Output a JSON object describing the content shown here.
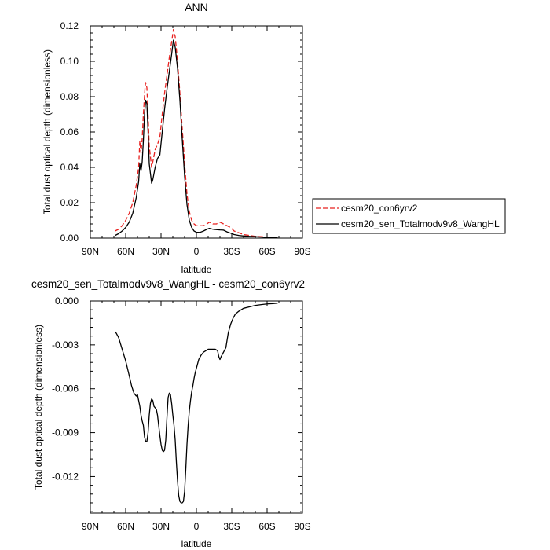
{
  "chart_data": [
    {
      "type": "line",
      "title": "ANN",
      "xlabel": "latitude",
      "ylabel": "Total dust optical depth (dimensionless)",
      "xlim": [
        90,
        -90
      ],
      "ylim": [
        0,
        0.12
      ],
      "xticks": [
        90,
        60,
        30,
        0,
        -30,
        -60,
        -90
      ],
      "xtick_labels": [
        "90N",
        "60N",
        "30N",
        "0",
        "30S",
        "60S",
        "90S"
      ],
      "yticks": [
        0,
        0.02,
        0.04,
        0.06,
        0.08,
        0.1,
        0.12
      ],
      "ytick_labels": [
        "0.00",
        "0.02",
        "0.04",
        "0.06",
        "0.08",
        "0.10",
        "0.12"
      ],
      "grid": false,
      "legend": "outside-right",
      "series": [
        {
          "name": "cesm20_con6yrv2",
          "color": "#e8211f",
          "dash": "dashed",
          "points": [
            [
              69,
              0.004
            ],
            [
              66,
              0.005
            ],
            [
              63,
              0.007
            ],
            [
              60,
              0.01
            ],
            [
              57,
              0.014
            ],
            [
              54,
              0.02
            ],
            [
              51,
              0.03
            ],
            [
              49,
              0.04
            ],
            [
              48,
              0.055
            ],
            [
              47,
              0.048
            ],
            [
              46,
              0.056
            ],
            [
              45,
              0.07
            ],
            [
              43.5,
              0.086
            ],
            [
              43,
              0.088
            ],
            [
              42,
              0.085
            ],
            [
              41,
              0.07
            ],
            [
              40,
              0.052
            ],
            [
              38,
              0.04
            ],
            [
              37,
              0.043
            ],
            [
              35,
              0.05
            ],
            [
              33,
              0.053
            ],
            [
              31,
              0.057
            ],
            [
              29,
              0.07
            ],
            [
              27,
              0.082
            ],
            [
              25,
              0.092
            ],
            [
              23,
              0.102
            ],
            [
              21,
              0.111
            ],
            [
              19.5,
              0.118
            ],
            [
              18,
              0.114
            ],
            [
              16,
              0.1
            ],
            [
              14,
              0.082
            ],
            [
              12,
              0.062
            ],
            [
              10,
              0.042
            ],
            [
              8,
              0.025
            ],
            [
              6,
              0.015
            ],
            [
              4,
              0.01
            ],
            [
              2,
              0.008
            ],
            [
              0,
              0.007
            ],
            [
              -3,
              0.007
            ],
            [
              -6,
              0.007
            ],
            [
              -9,
              0.008
            ],
            [
              -11,
              0.009
            ],
            [
              -14,
              0.008
            ],
            [
              -17,
              0.008
            ],
            [
              -20,
              0.009
            ],
            [
              -23,
              0.008
            ],
            [
              -26,
              0.007
            ],
            [
              -29,
              0.006
            ],
            [
              -32,
              0.004
            ],
            [
              -36,
              0.003
            ],
            [
              -40,
              0.002
            ],
            [
              -45,
              0.0015
            ],
            [
              -50,
              0.001
            ],
            [
              -55,
              0.0008
            ],
            [
              -60,
              0.0006
            ],
            [
              -65,
              0.0004
            ],
            [
              -69,
              0.0003
            ]
          ]
        },
        {
          "name": "cesm20_sen_Totalmodv9v8_WangHL",
          "color": "#000000",
          "dash": "solid",
          "points": [
            [
              69,
              0.0015
            ],
            [
              66,
              0.0025
            ],
            [
              63,
              0.004
            ],
            [
              60,
              0.006
            ],
            [
              57,
              0.009
            ],
            [
              54,
              0.014
            ],
            [
              51,
              0.023
            ],
            [
              49,
              0.032
            ],
            [
              48,
              0.042
            ],
            [
              47,
              0.038
            ],
            [
              46,
              0.043
            ],
            [
              45,
              0.055
            ],
            [
              44,
              0.07
            ],
            [
              43,
              0.078
            ],
            [
              42,
              0.076
            ],
            [
              41,
              0.06
            ],
            [
              40,
              0.042
            ],
            [
              38,
              0.031
            ],
            [
              37,
              0.033
            ],
            [
              35,
              0.04
            ],
            [
              33,
              0.045
            ],
            [
              31,
              0.047
            ],
            [
              29,
              0.06
            ],
            [
              27,
              0.073
            ],
            [
              25,
              0.084
            ],
            [
              23,
              0.094
            ],
            [
              21,
              0.104
            ],
            [
              19.5,
              0.112
            ],
            [
              18,
              0.108
            ],
            [
              16,
              0.096
            ],
            [
              14,
              0.078
            ],
            [
              12,
              0.056
            ],
            [
              10,
              0.035
            ],
            [
              8,
              0.019
            ],
            [
              6,
              0.01
            ],
            [
              4,
              0.006
            ],
            [
              2,
              0.004
            ],
            [
              0,
              0.0033
            ],
            [
              -3,
              0.0032
            ],
            [
              -6,
              0.004
            ],
            [
              -9,
              0.005
            ],
            [
              -11,
              0.0055
            ],
            [
              -14,
              0.005
            ],
            [
              -17,
              0.0048
            ],
            [
              -20,
              0.0046
            ],
            [
              -23,
              0.0045
            ],
            [
              -26,
              0.0035
            ],
            [
              -29,
              0.0028
            ],
            [
              -32,
              0.002
            ],
            [
              -36,
              0.0015
            ],
            [
              -40,
              0.0012
            ],
            [
              -45,
              0.001
            ],
            [
              -50,
              0.0008
            ],
            [
              -55,
              0.0006
            ],
            [
              -60,
              0.0004
            ],
            [
              -65,
              0.0003
            ],
            [
              -69,
              0.0002
            ]
          ]
        }
      ]
    },
    {
      "type": "line",
      "title": "cesm20_sen_Totalmodv9v8_WangHL - cesm20_con6yrv2",
      "xlabel": "latitude",
      "ylabel": "Total dust optical depth (dimensionless)",
      "xlim": [
        90,
        -90
      ],
      "ylim": [
        -0.0145,
        0
      ],
      "xticks": [
        90,
        60,
        30,
        0,
        -30,
        -60,
        -90
      ],
      "xtick_labels": [
        "90N",
        "60N",
        "30N",
        "0",
        "30S",
        "60S",
        "90S"
      ],
      "yticks": [
        0,
        -0.003,
        -0.006,
        -0.009,
        -0.012
      ],
      "ytick_labels": [
        "0.000",
        "-0.003",
        "-0.006",
        "-0.009",
        "-0.012"
      ],
      "grid": false,
      "series": [
        {
          "color": "#000000",
          "dash": "solid",
          "points": [
            [
              69,
              -0.0021
            ],
            [
              68,
              -0.0022
            ],
            [
              66,
              -0.0025
            ],
            [
              63,
              -0.0033
            ],
            [
              60,
              -0.0041
            ],
            [
              57,
              -0.0051
            ],
            [
              55,
              -0.0058
            ],
            [
              53,
              -0.0063
            ],
            [
              51,
              -0.0065
            ],
            [
              50,
              -0.0064
            ],
            [
              49,
              -0.0068
            ],
            [
              48,
              -0.0072
            ],
            [
              47,
              -0.0078
            ],
            [
              46,
              -0.0082
            ],
            [
              45,
              -0.0085
            ],
            [
              44,
              -0.0093
            ],
            [
              43,
              -0.0096
            ],
            [
              42,
              -0.0096
            ],
            [
              41,
              -0.009
            ],
            [
              40,
              -0.0078
            ],
            [
              39,
              -0.007
            ],
            [
              38,
              -0.0067
            ],
            [
              37,
              -0.0068
            ],
            [
              36,
              -0.0072
            ],
            [
              35,
              -0.0073
            ],
            [
              34,
              -0.0074
            ],
            [
              33,
              -0.0078
            ],
            [
              32,
              -0.0085
            ],
            [
              31,
              -0.0092
            ],
            [
              30,
              -0.0098
            ],
            [
              29,
              -0.0102
            ],
            [
              28,
              -0.0103
            ],
            [
              27,
              -0.0102
            ],
            [
              26,
              -0.0095
            ],
            [
              25,
              -0.008
            ],
            [
              24,
              -0.0066
            ],
            [
              23,
              -0.0063
            ],
            [
              22,
              -0.0064
            ],
            [
              21,
              -0.007
            ],
            [
              20,
              -0.0078
            ],
            [
              19,
              -0.0085
            ],
            [
              18,
              -0.0095
            ],
            [
              17,
              -0.011
            ],
            [
              16,
              -0.0123
            ],
            [
              15,
              -0.0133
            ],
            [
              14,
              -0.0137
            ],
            [
              13,
              -0.0138
            ],
            [
              12,
              -0.0138
            ],
            [
              11,
              -0.0137
            ],
            [
              10,
              -0.013
            ],
            [
              9,
              -0.0115
            ],
            [
              8,
              -0.0098
            ],
            [
              7,
              -0.0085
            ],
            [
              6,
              -0.0075
            ],
            [
              5,
              -0.0068
            ],
            [
              4,
              -0.0062
            ],
            [
              3,
              -0.0058
            ],
            [
              2,
              -0.0053
            ],
            [
              1,
              -0.0049
            ],
            [
              0,
              -0.0046
            ],
            [
              -2,
              -0.004
            ],
            [
              -4,
              -0.0037
            ],
            [
              -6,
              -0.0035
            ],
            [
              -8,
              -0.0034
            ],
            [
              -10,
              -0.0033
            ],
            [
              -12,
              -0.0033
            ],
            [
              -14,
              -0.0033
            ],
            [
              -16,
              -0.0033
            ],
            [
              -18,
              -0.0034
            ],
            [
              -19,
              -0.0038
            ],
            [
              -20,
              -0.004
            ],
            [
              -21,
              -0.0038
            ],
            [
              -23,
              -0.0035
            ],
            [
              -25,
              -0.0032
            ],
            [
              -27,
              -0.0022
            ],
            [
              -29,
              -0.0016
            ],
            [
              -31,
              -0.0012
            ],
            [
              -33,
              -0.0009
            ],
            [
              -36,
              -0.0007
            ],
            [
              -40,
              -0.0005
            ],
            [
              -45,
              -0.0004
            ],
            [
              -50,
              -0.0003
            ],
            [
              -55,
              -0.00025
            ],
            [
              -60,
              -0.0002
            ],
            [
              -65,
              -0.00018
            ],
            [
              -69,
              -0.00015
            ]
          ]
        }
      ]
    }
  ]
}
